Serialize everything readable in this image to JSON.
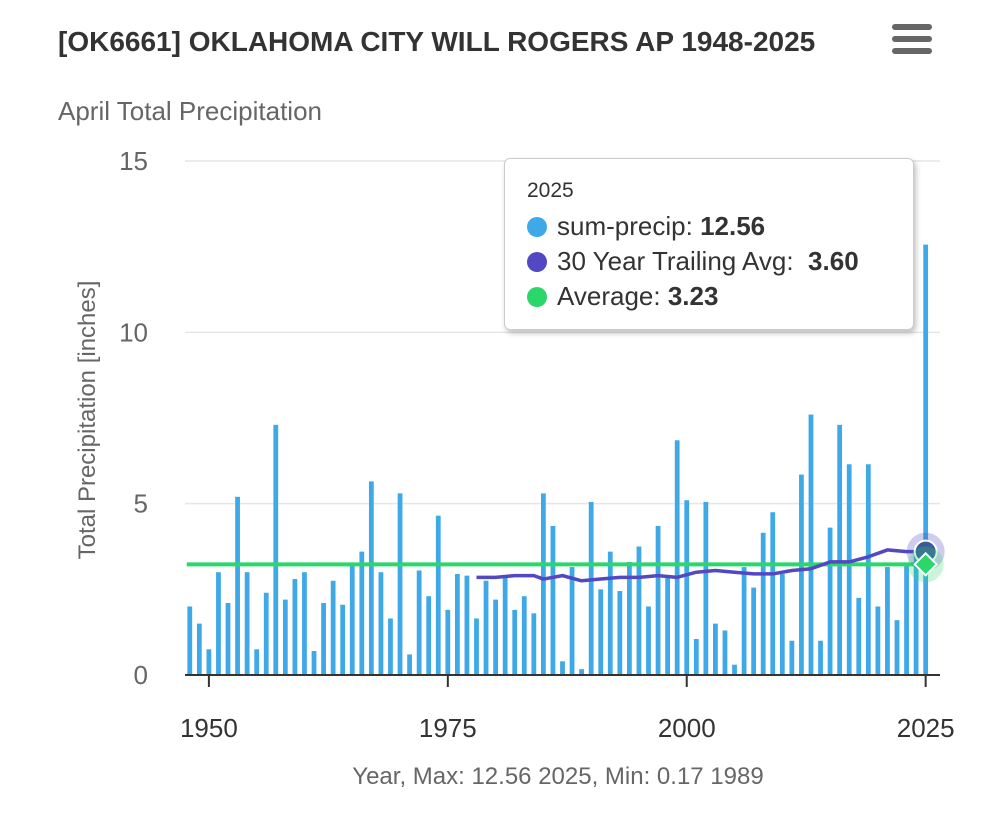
{
  "header": {
    "title": "[OK6661] OKLAHOMA CITY WILL ROGERS AP 1948-2025",
    "subtitle": "April Total Precipitation"
  },
  "menu_icon": "hamburger-menu-icon",
  "colors": {
    "bars": "#3fa9e8",
    "trailing": "#5148c2",
    "average": "#2bd66b",
    "grid": "#e6e6e6",
    "axis_text": "#666666"
  },
  "chart_data": {
    "type": "bar",
    "title": "April Total Precipitation",
    "xlabel": "Year, Max: 12.56 2025, Min: 0.17 1989",
    "ylabel": "Total Precipitation [inches]",
    "ylim": [
      0,
      15
    ],
    "yticks": [
      0,
      5,
      10,
      15
    ],
    "xticks": [
      1950,
      1975,
      2000,
      2025
    ],
    "grid": true,
    "series": [
      {
        "name": "sum-precip",
        "type": "bar",
        "x": [
          1948,
          1949,
          1950,
          1951,
          1952,
          1953,
          1954,
          1955,
          1956,
          1957,
          1958,
          1959,
          1960,
          1961,
          1962,
          1963,
          1964,
          1965,
          1966,
          1967,
          1968,
          1969,
          1970,
          1971,
          1972,
          1973,
          1974,
          1975,
          1976,
          1977,
          1978,
          1979,
          1980,
          1981,
          1982,
          1983,
          1984,
          1985,
          1986,
          1987,
          1988,
          1989,
          1990,
          1991,
          1992,
          1993,
          1994,
          1995,
          1996,
          1997,
          1998,
          1999,
          2000,
          2001,
          2002,
          2003,
          2004,
          2005,
          2006,
          2007,
          2008,
          2009,
          2010,
          2011,
          2012,
          2013,
          2014,
          2015,
          2016,
          2017,
          2018,
          2019,
          2020,
          2021,
          2022,
          2023,
          2024,
          2025
        ],
        "values": [
          2.0,
          1.5,
          0.75,
          3.0,
          2.1,
          5.2,
          3.0,
          0.75,
          2.4,
          7.3,
          2.2,
          2.8,
          3.0,
          0.7,
          2.1,
          2.75,
          2.05,
          3.2,
          3.6,
          5.65,
          3.0,
          1.65,
          5.3,
          0.6,
          3.05,
          2.3,
          4.65,
          1.9,
          2.95,
          2.9,
          1.65,
          2.75,
          2.2,
          2.9,
          1.9,
          2.3,
          1.8,
          5.3,
          4.35,
          0.4,
          3.15,
          0.17,
          5.05,
          2.5,
          3.6,
          2.45,
          3.3,
          3.75,
          2.0,
          4.35,
          2.85,
          6.85,
          5.1,
          1.05,
          5.05,
          1.5,
          1.3,
          0.3,
          3.15,
          2.55,
          4.15,
          4.75,
          2.95,
          1.0,
          5.85,
          7.6,
          1.0,
          4.3,
          7.3,
          6.15,
          2.25,
          6.15,
          2.0,
          3.15,
          1.6,
          3.25,
          3.6,
          12.56
        ]
      },
      {
        "name": "30 Year Trailing Avg",
        "type": "line",
        "x": [
          1978,
          1980,
          1982,
          1984,
          1985,
          1987,
          1989,
          1991,
          1993,
          1995,
          1997,
          1999,
          2001,
          2003,
          2005,
          2007,
          2009,
          2011,
          2013,
          2015,
          2017,
          2019,
          2021,
          2023,
          2025
        ],
        "values": [
          2.85,
          2.85,
          2.9,
          2.9,
          2.8,
          2.9,
          2.75,
          2.8,
          2.85,
          2.85,
          2.9,
          2.85,
          3.0,
          3.05,
          3.0,
          2.95,
          2.95,
          3.05,
          3.1,
          3.3,
          3.3,
          3.45,
          3.65,
          3.6,
          3.6
        ]
      },
      {
        "name": "Average",
        "type": "line",
        "x": [
          1948,
          2025
        ],
        "values": [
          3.23,
          3.23
        ]
      }
    ]
  },
  "tooltip": {
    "year": "2025",
    "rows": [
      {
        "label": "sum-precip:",
        "value": "12.56"
      },
      {
        "label": "30 Year Trailing Avg:",
        "value": "3.60"
      },
      {
        "label": "Average:",
        "value": "3.23"
      }
    ]
  }
}
